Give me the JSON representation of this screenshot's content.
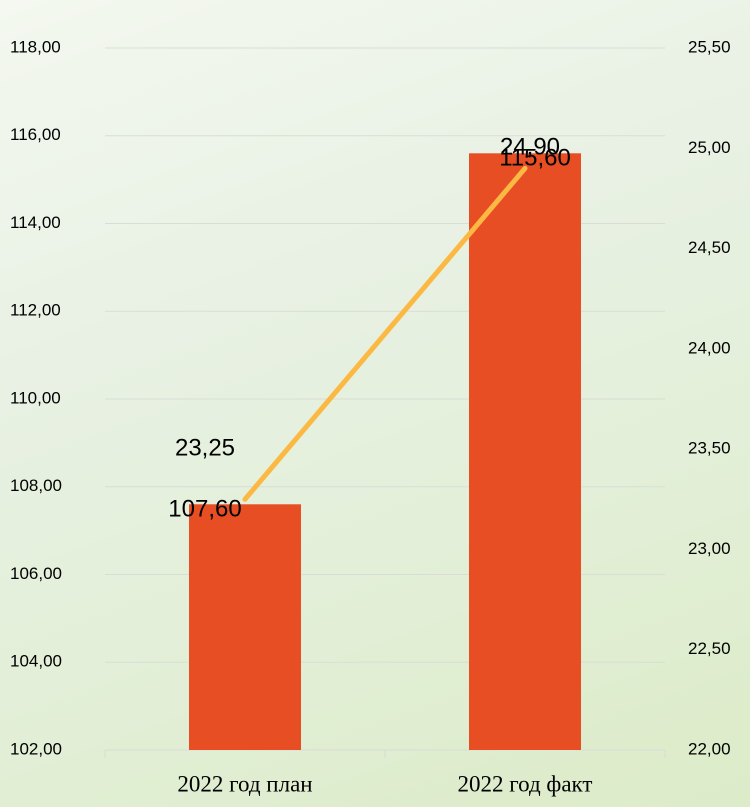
{
  "chart_data": {
    "type": "bar",
    "categories": [
      "2022 год план",
      "2022 год факт"
    ],
    "series": [
      {
        "type": "bar",
        "color": "#e84e24",
        "values": [
          107.6,
          115.6
        ],
        "value_labels": [
          "107,60",
          "115,60"
        ]
      },
      {
        "type": "line",
        "axis": "y2",
        "color": "#fbb943",
        "values": [
          23.25,
          24.9
        ],
        "value_labels": [
          "23,25",
          "24,90"
        ]
      }
    ],
    "ylim": [
      102,
      118
    ],
    "yticks": [
      {
        "value": 102,
        "label": "102,00"
      },
      {
        "value": 104,
        "label": "104,00"
      },
      {
        "value": 106,
        "label": "106,00"
      },
      {
        "value": 108,
        "label": "108,00"
      },
      {
        "value": 110,
        "label": "110,00"
      },
      {
        "value": 112,
        "label": "112,00"
      },
      {
        "value": 114,
        "label": "114,00"
      },
      {
        "value": 116,
        "label": "116,00"
      },
      {
        "value": 118,
        "label": "118,00"
      }
    ],
    "y2lim": [
      22,
      25.5
    ],
    "y2ticks": [
      {
        "value": 22,
        "label": "22,00"
      },
      {
        "value": 22.5,
        "label": "22,50"
      },
      {
        "value": 23,
        "label": "23,00"
      },
      {
        "value": 23.5,
        "label": "23,50"
      },
      {
        "value": 24,
        "label": "24,00"
      },
      {
        "value": 24.5,
        "label": "24,50"
      },
      {
        "value": 25,
        "label": "25,00"
      },
      {
        "value": 25.5,
        "label": "25,50"
      }
    ],
    "grid": true
  }
}
